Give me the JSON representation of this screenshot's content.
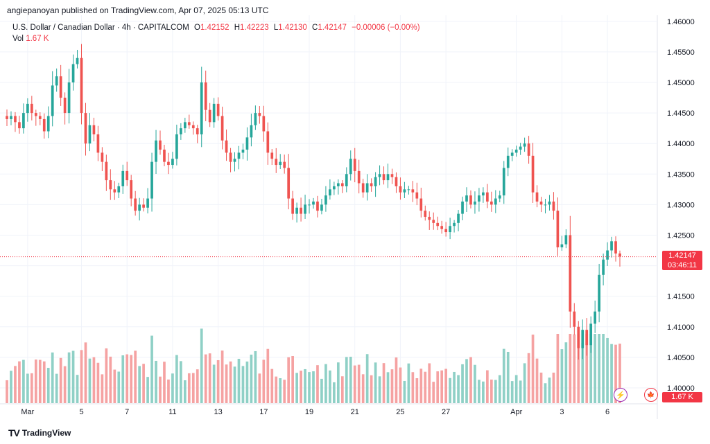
{
  "header": {
    "publisher": "angiepanoyan published on TradingView.com, Apr 07, 2025 05:13 UTC",
    "symbol": "U.S. Dollar / Canadian Dollar · 4h · CAPITALCOM",
    "open_label": "O",
    "open": "1.42152",
    "high_label": "H",
    "high": "1.42223",
    "low_label": "L",
    "low": "1.42130",
    "close_label": "C",
    "close": "1.42147",
    "change": "−0.00006 (−0.00%)",
    "vol_label": "Vol",
    "vol": "1.67 K"
  },
  "badges": {
    "price": "1.42147",
    "countdown": "03:46:11",
    "volume": "1.67 K"
  },
  "footer": {
    "brand": "TradingView",
    "logo": "TV"
  },
  "icons": {
    "flash": "flash-icon",
    "flag": "canada-flag-icon"
  },
  "colors": {
    "up": "#26a69a",
    "down": "#ef5350",
    "upVol": "#8fd0c6",
    "downVol": "#f5a2a2"
  },
  "chart_data": {
    "type": "candlestick",
    "title": "U.S. Dollar / Canadian Dollar · 4h · CAPITALCOM",
    "ylim": [
      1.3975,
      1.461
    ],
    "yticks": [
      "1.46000",
      "1.45500",
      "1.45000",
      "1.44500",
      "1.44000",
      "1.43500",
      "1.43000",
      "1.42500",
      "1.42000",
      "1.41500",
      "1.41000",
      "1.40500",
      "1.40000"
    ],
    "ytick_values": [
      1.46,
      1.455,
      1.45,
      1.445,
      1.44,
      1.435,
      1.43,
      1.425,
      1.42,
      1.415,
      1.41,
      1.405,
      1.4
    ],
    "current_price": 1.42147,
    "xtick_labels": [
      {
        "label": "Mar",
        "index": 5
      },
      {
        "label": "5",
        "index": 18
      },
      {
        "label": "7",
        "index": 29
      },
      {
        "label": "11",
        "index": 40
      },
      {
        "label": "13",
        "index": 51
      },
      {
        "label": "17",
        "index": 62
      },
      {
        "label": "19",
        "index": 73
      },
      {
        "label": "21",
        "index": 84
      },
      {
        "label": "25",
        "index": 95
      },
      {
        "label": "27",
        "index": 106
      },
      {
        "label": "Apr",
        "index": 123
      },
      {
        "label": "3",
        "index": 134
      },
      {
        "label": "6",
        "index": 145
      }
    ],
    "close": [
      1.444,
      1.4445,
      1.4435,
      1.4425,
      1.445,
      1.4465,
      1.445,
      1.4445,
      1.444,
      1.442,
      1.4445,
      1.4495,
      1.451,
      1.4475,
      1.445,
      1.45,
      1.453,
      1.454,
      1.445,
      1.44,
      1.443,
      1.4415,
      1.4385,
      1.437,
      1.434,
      1.4325,
      1.432,
      1.433,
      1.4355,
      1.434,
      1.431,
      1.429,
      1.43,
      1.4295,
      1.431,
      1.437,
      1.4405,
      1.439,
      1.437,
      1.4365,
      1.4375,
      1.4415,
      1.4425,
      1.4435,
      1.443,
      1.4425,
      1.4415,
      1.45,
      1.4455,
      1.4435,
      1.4465,
      1.4445,
      1.4405,
      1.4385,
      1.437,
      1.4375,
      1.4385,
      1.439,
      1.441,
      1.443,
      1.445,
      1.4445,
      1.442,
      1.4385,
      1.4375,
      1.4365,
      1.437,
      1.436,
      1.431,
      1.4285,
      1.4295,
      1.4285,
      1.43,
      1.43,
      1.4305,
      1.429,
      1.43,
      1.4315,
      1.4325,
      1.433,
      1.4335,
      1.433,
      1.435,
      1.4375,
      1.4355,
      1.4335,
      1.432,
      1.4335,
      1.433,
      1.4345,
      1.435,
      1.434,
      1.435,
      1.4345,
      1.433,
      1.432,
      1.4325,
      1.4325,
      1.432,
      1.431,
      1.429,
      1.428,
      1.4275,
      1.427,
      1.4265,
      1.426,
      1.4255,
      1.4265,
      1.427,
      1.4285,
      1.4305,
      1.4315,
      1.43,
      1.4305,
      1.4315,
      1.432,
      1.4305,
      1.43,
      1.431,
      1.4315,
      1.436,
      1.438,
      1.4385,
      1.439,
      1.4395,
      1.44,
      1.438,
      1.432,
      1.4305,
      1.43,
      1.43,
      1.4305,
      1.429,
      1.423,
      1.4235,
      1.425,
      1.4125,
      1.41,
      1.4065,
      1.4095,
      1.407,
      1.4105,
      1.4125,
      1.4185,
      1.421,
      1.4225,
      1.424,
      1.422,
      1.4215
    ],
    "volume_unit": "K",
    "volume_scale_note": "relative volume heights (0-1)"
  }
}
